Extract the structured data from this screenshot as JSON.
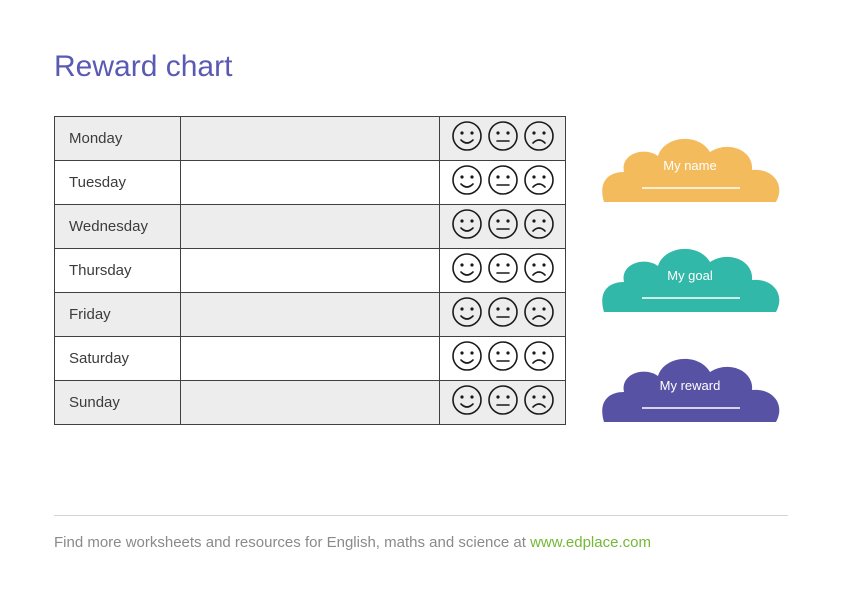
{
  "title": {
    "text": "Reward chart",
    "color": "#5a5ab5"
  },
  "table": {
    "border_color": "#404040",
    "shaded_bg": "#ededed",
    "text_color": "#3c3c3c",
    "days": [
      "Monday",
      "Tuesday",
      "Wednesday",
      "Thursday",
      "Friday",
      "Saturday",
      "Sunday"
    ],
    "shaded_rows": [
      0,
      2,
      4,
      6
    ],
    "face_stroke": "#1a1a1a"
  },
  "clouds": [
    {
      "label": "My name",
      "fill": "#f3bb5b"
    },
    {
      "label": "My goal",
      "fill": "#32b8a8"
    },
    {
      "label": "My reward",
      "fill": "#5752a3"
    }
  ],
  "footer": {
    "text": "Find more worksheets and resources for English, maths and science at ",
    "link_text": "www.edplace.com",
    "link_color": "#74b836",
    "text_color": "#8a8a8a",
    "rule_color": "#d4d4d4"
  }
}
